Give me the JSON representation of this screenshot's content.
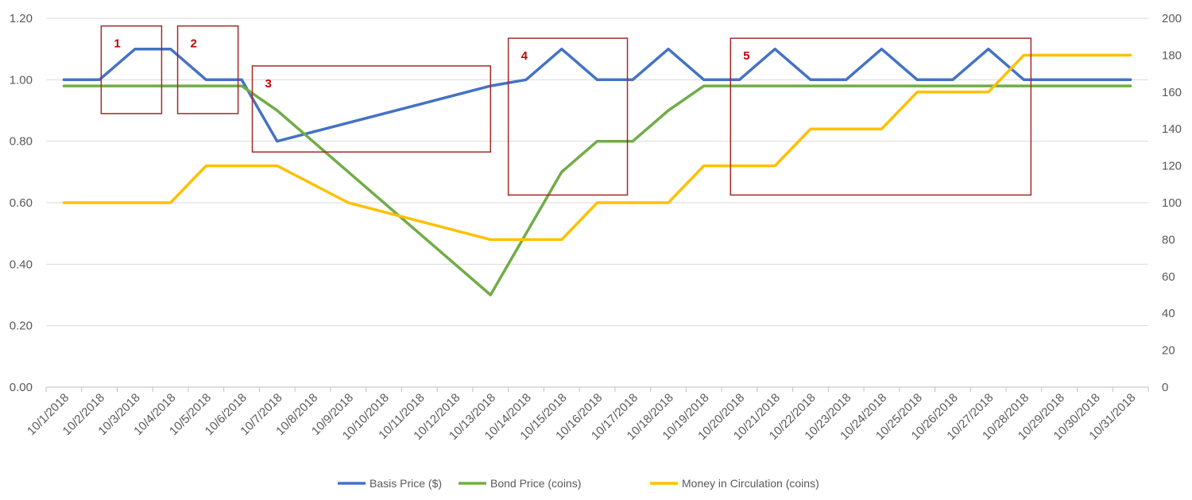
{
  "chart_data": {
    "type": "line",
    "categories": [
      "10/1/2018",
      "10/2/2018",
      "10/3/2018",
      "10/4/2018",
      "10/5/2018",
      "10/6/2018",
      "10/7/2018",
      "10/8/2018",
      "10/9/2018",
      "10/10/2018",
      "10/11/2018",
      "10/12/2018",
      "10/13/2018",
      "10/14/2018",
      "10/15/2018",
      "10/16/2018",
      "10/17/2018",
      "10/18/2018",
      "10/19/2018",
      "10/20/2018",
      "10/21/2018",
      "10/22/2018",
      "10/23/2018",
      "10/24/2018",
      "10/25/2018",
      "10/26/2018",
      "10/27/2018",
      "10/28/2018",
      "10/29/2018",
      "10/30/2018",
      "10/31/2018"
    ],
    "y_left": {
      "min": 0,
      "max": 1.2,
      "ticks": [
        "0.00",
        "0.20",
        "0.40",
        "0.60",
        "0.80",
        "1.00",
        "1.20"
      ]
    },
    "y_right": {
      "min": 0,
      "max": 200,
      "ticks": [
        "0",
        "20",
        "40",
        "60",
        "80",
        "100",
        "120",
        "140",
        "160",
        "180",
        "200"
      ]
    },
    "grid": true,
    "legend_position": "bottom",
    "series": [
      {
        "name": "Basis Price ($)",
        "axis": "left",
        "color": "#4472C4",
        "points": [
          [
            1,
            1.0
          ],
          [
            2,
            1.0
          ],
          [
            3,
            1.1
          ],
          [
            4,
            1.1
          ],
          [
            5,
            1.0
          ],
          [
            6,
            1.0
          ],
          [
            7,
            0.8
          ],
          [
            13,
            0.98
          ],
          [
            14,
            1.0
          ],
          [
            15,
            1.1
          ],
          [
            16,
            1.0
          ],
          [
            17,
            1.0
          ],
          [
            18,
            1.1
          ],
          [
            19,
            1.0
          ],
          [
            20,
            1.0
          ],
          [
            21,
            1.1
          ],
          [
            22,
            1.0
          ],
          [
            23,
            1.0
          ],
          [
            24,
            1.1
          ],
          [
            25,
            1.0
          ],
          [
            26,
            1.0
          ],
          [
            27,
            1.1
          ],
          [
            28,
            1.0
          ],
          [
            31,
            1.0
          ]
        ]
      },
      {
        "name": "Bond Price (coins)",
        "axis": "left",
        "color": "#70AD47",
        "points": [
          [
            1,
            0.98
          ],
          [
            6,
            0.98
          ],
          [
            7,
            0.9
          ],
          [
            13,
            0.3
          ],
          [
            15,
            0.7
          ],
          [
            16,
            0.8
          ],
          [
            17,
            0.8
          ],
          [
            18,
            0.9
          ],
          [
            19,
            0.98
          ],
          [
            31,
            0.98
          ]
        ]
      },
      {
        "name": "Money in Circulation (coins)",
        "axis": "right",
        "color": "#FFC000",
        "points": [
          [
            1,
            100
          ],
          [
            4,
            100
          ],
          [
            5,
            120
          ],
          [
            7,
            120
          ],
          [
            9,
            100
          ],
          [
            13,
            80
          ],
          [
            15,
            80
          ],
          [
            16,
            100
          ],
          [
            18,
            100
          ],
          [
            19,
            120
          ],
          [
            21,
            120
          ],
          [
            22,
            140
          ],
          [
            24,
            140
          ],
          [
            25,
            160
          ],
          [
            27,
            160
          ],
          [
            28,
            180
          ],
          [
            31,
            180
          ]
        ]
      }
    ],
    "annotations": [
      {
        "label": "1",
        "color": "#C00000",
        "x_range": [
          2.05,
          3.75
        ],
        "y_range": [
          0.89,
          1.175
        ]
      },
      {
        "label": "2",
        "color": "#C00000",
        "x_range": [
          4.2,
          5.9
        ],
        "y_range": [
          0.89,
          1.175
        ]
      },
      {
        "label": "3",
        "color": "#C00000",
        "x_range": [
          6.3,
          13.0
        ],
        "y_range": [
          0.765,
          1.045
        ]
      },
      {
        "label": "4",
        "color": "#C00000",
        "x_range": [
          13.5,
          16.85
        ],
        "y_range": [
          0.625,
          1.135
        ]
      },
      {
        "label": "5",
        "color": "#C00000",
        "x_range": [
          19.75,
          28.2
        ],
        "y_range": [
          0.625,
          1.135
        ]
      }
    ]
  }
}
